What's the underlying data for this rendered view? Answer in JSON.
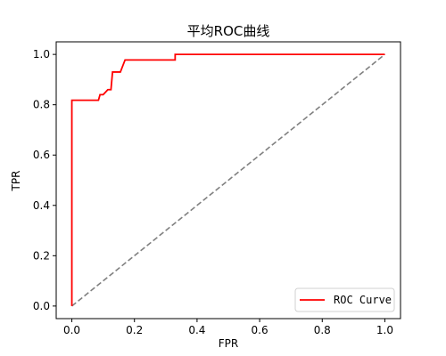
{
  "chart_data": {
    "type": "line",
    "title": "平均ROC曲线",
    "xlabel": "FPR",
    "ylabel": "TPR",
    "xlim": [
      -0.05,
      1.05
    ],
    "ylim": [
      -0.05,
      1.05
    ],
    "xticks": [
      0.0,
      0.2,
      0.4,
      0.6,
      0.8,
      1.0
    ],
    "yticks": [
      0.0,
      0.2,
      0.4,
      0.6,
      0.8,
      1.0
    ],
    "xtick_labels": [
      "0.0",
      "0.2",
      "0.4",
      "0.6",
      "0.8",
      "1.0"
    ],
    "ytick_labels": [
      "0.0",
      "0.2",
      "0.4",
      "0.6",
      "0.8",
      "1.0"
    ],
    "grid": false,
    "legend_position": "lower-right",
    "series": [
      {
        "name": "ROC Curve",
        "color": "#ff0000",
        "style": "solid",
        "x": [
          0.0,
          0.0,
          0.085,
          0.09,
          0.1,
          0.115,
          0.125,
          0.13,
          0.155,
          0.17,
          0.33,
          0.33,
          1.0
        ],
        "y": [
          0.0,
          0.818,
          0.818,
          0.84,
          0.84,
          0.86,
          0.86,
          0.93,
          0.93,
          0.978,
          0.978,
          1.0,
          1.0
        ]
      },
      {
        "color": "#808080",
        "style": "dashed",
        "x": [
          0.0,
          1.0
        ],
        "y": [
          0.0,
          1.0
        ]
      }
    ]
  }
}
